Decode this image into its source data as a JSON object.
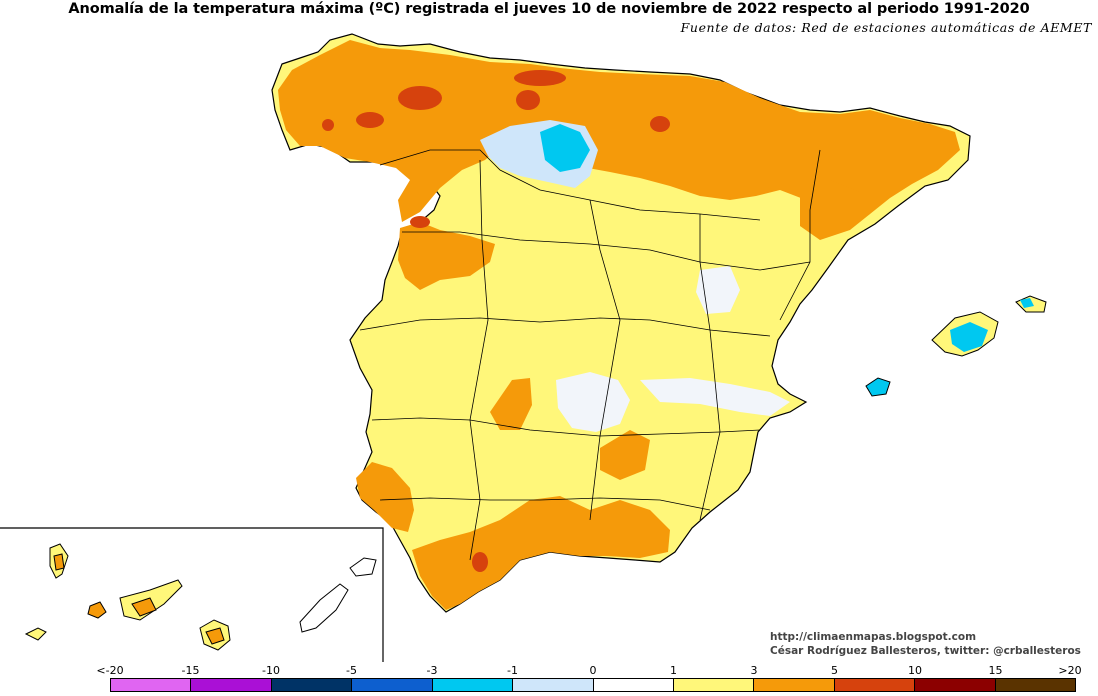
{
  "title": "Anomalía de la temperatura máxima (ºC) registrada el jueves 10 de noviembre de 2022 respecto al periodo 1991-2020",
  "subtitle": "Fuente de datos: Red de estaciones automáticas de AEMET",
  "credits": {
    "blog": "http://climaenmapas.blogspot.com",
    "author": "César Rodríguez Ballesteros, twitter: @crballesteros"
  },
  "legend": {
    "ticks": [
      "<-20",
      "-15",
      "-10",
      "-5",
      "-3",
      "-1",
      "0",
      "1",
      "3",
      "5",
      "10",
      "15",
      ">20"
    ],
    "colors": [
      "#e065f2",
      "#aa10d6",
      "#003366",
      "#0d5fcf",
      "#00c8f0",
      "#cfe6fa",
      "#ffffff",
      "#fff77a",
      "#f59a0a",
      "#d6420d",
      "#8c0000",
      "#5a3300"
    ]
  },
  "colors": {
    "below_neg3": "#00c8f0",
    "neg1_to_0": "#cfe6fa",
    "zero_to_1": "#ffffff",
    "one_to_3": "#fff77a",
    "three_to_5": "#f59a0a",
    "five_to_10": "#d6420d",
    "coast": "#000000"
  }
}
